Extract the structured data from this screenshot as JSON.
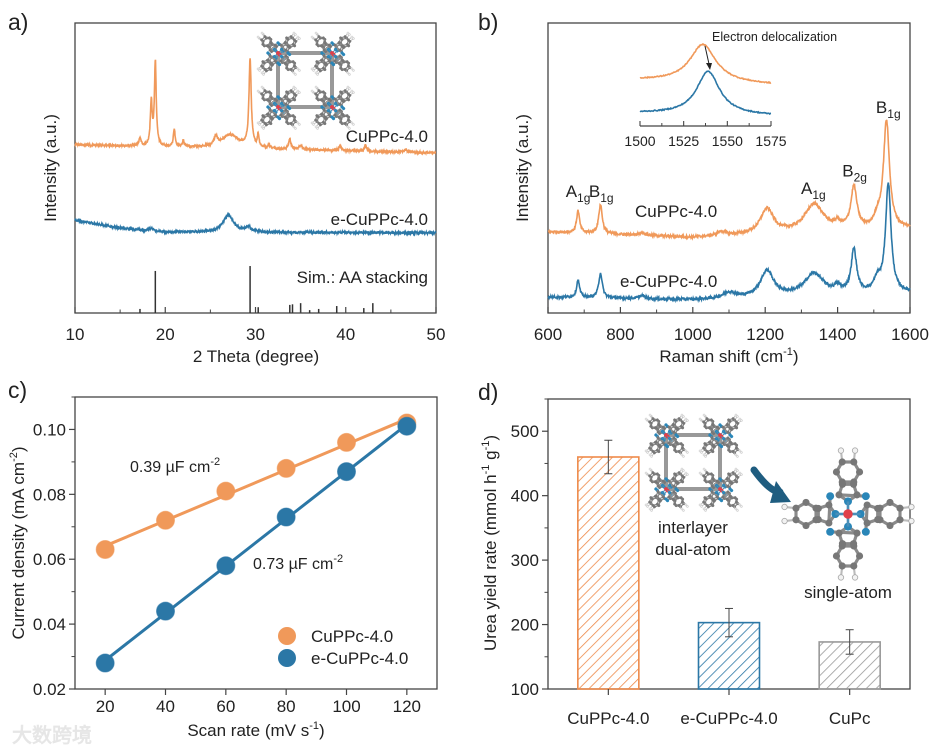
{
  "figure": {
    "panel_labels": [
      "a)",
      "b)",
      "c)",
      "d)"
    ],
    "watermark": "大数跨境"
  },
  "chart_data": [
    {
      "type": "line",
      "panel": "a)",
      "xlabel": "2 Theta (degree)",
      "ylabel": "Intensity (a.u.)",
      "xlim": [
        10,
        50
      ],
      "ylim": [
        0,
        100
      ],
      "xticks": [
        10,
        20,
        30,
        40,
        50
      ],
      "xticklabels": [
        "10",
        "20",
        "30",
        "40",
        "50"
      ],
      "minor_step": 5,
      "series": [
        {
          "name": "CuPPc-4.0",
          "color": "#f0995a",
          "baseline": [
            [
              10,
              58
            ],
            [
              50,
              55.2
            ]
          ],
          "peaks": [
            [
              17.2,
              2.5,
              0.15
            ],
            [
              18.45,
              15,
              0.12
            ],
            [
              18.9,
              29,
              0.12
            ],
            [
              21.0,
              6,
              0.12
            ],
            [
              22.0,
              2,
              0.12
            ],
            [
              25.6,
              3,
              0.2
            ],
            [
              27.2,
              4.5,
              1.2
            ],
            [
              29.4,
              30,
              0.15
            ],
            [
              30.3,
              4,
              0.12
            ],
            [
              31.5,
              1,
              0.15
            ],
            [
              33.8,
              3.5,
              0.15
            ],
            [
              35.0,
              1.5,
              0.2
            ],
            [
              39.4,
              1.5,
              0.2
            ],
            [
              42.2,
              2,
              0.15
            ],
            [
              46.6,
              0.8,
              0.3
            ]
          ]
        },
        {
          "name": "e-CuPPc-4.0",
          "color": "#2b77a6",
          "baseline": [
            [
              10,
              32
            ],
            [
              15,
              29.3
            ],
            [
              20,
              27.9
            ],
            [
              50,
              27.6
            ]
          ],
          "peaks": [
            [
              18.5,
              1,
              0.2
            ],
            [
              27.0,
              6,
              0.7
            ],
            [
              29.2,
              1.8,
              0.3
            ]
          ]
        }
      ],
      "reference": {
        "name": "Sim.: AA stacking",
        "color": "#333333",
        "positions": [
          17.2,
          18.9,
          29.4,
          30.3,
          33.8,
          34.1,
          35.0,
          36.0,
          37.0,
          39.0,
          42.0,
          43.0
        ],
        "heights": [
          1.4,
          14.5,
          16.2,
          2.0,
          2.8,
          3.0,
          3.4,
          1.0,
          1.4,
          2.4,
          1.7,
          3.4
        ]
      }
    },
    {
      "type": "line",
      "panel": "b)",
      "xlabel": {
        "text": "Raman shift (cm",
        "sup": "-1",
        "tail": ")"
      },
      "ylabel": "Intensity (a.u.)",
      "xlim": [
        600,
        1600
      ],
      "ylim": [
        0,
        100
      ],
      "xticks": [
        600,
        800,
        1000,
        1200,
        1400,
        1600
      ],
      "xticklabels": [
        "600",
        "800",
        "1000",
        "1200",
        "1400",
        "1600"
      ],
      "minor_step": 100,
      "series": [
        {
          "name": "CuPPc-4.0",
          "color": "#f0995a",
          "baseline": [
            [
              600,
              28
            ],
            [
              1000,
              26
            ],
            [
              1600,
              29
            ]
          ],
          "peaks": [
            [
              683,
              7.6,
              5
            ],
            [
              745,
              10,
              6
            ],
            [
              860,
              1,
              10
            ],
            [
              1080,
              1.5,
              15
            ],
            [
              1205,
              8.6,
              22
            ],
            [
              1335,
              9.6,
              32
            ],
            [
              1400,
              2,
              10
            ],
            [
              1445,
              14.5,
              10
            ],
            [
              1510,
              3,
              12
            ],
            [
              1535,
              37,
              10
            ]
          ]
        },
        {
          "name": "e-CuPPc-4.0",
          "color": "#2b77a6",
          "baseline": [
            [
              600,
              5.5
            ],
            [
              1000,
              4.5
            ],
            [
              1600,
              7
            ]
          ],
          "peaks": [
            [
              683,
              6,
              5
            ],
            [
              745,
              8.5,
              6
            ],
            [
              860,
              1,
              10
            ],
            [
              1100,
              2,
              20
            ],
            [
              1205,
              9,
              22
            ],
            [
              1335,
              7.5,
              32
            ],
            [
              1400,
              2,
              10
            ],
            [
              1445,
              15,
              9
            ],
            [
              1510,
              4,
              12
            ],
            [
              1540,
              37.5,
              9
            ]
          ]
        }
      ],
      "annotations": [
        {
          "main": "A",
          "sub": "1g",
          "x": 683,
          "y": 40
        },
        {
          "main": "B",
          "sub": "1g",
          "x": 747,
          "y": 40
        },
        {
          "main": "A",
          "sub": "1g",
          "x": 1333,
          "y": 41
        },
        {
          "main": "B",
          "sub": "2g",
          "x": 1447,
          "y": 47
        },
        {
          "main": "B",
          "sub": "1g",
          "x": 1540,
          "y": 69
        }
      ],
      "inset": {
        "xlim": [
          1500,
          1575
        ],
        "ylim": [
          0,
          100
        ],
        "xticks": [
          1500,
          1525,
          1550,
          1575
        ],
        "xticklabels": [
          "1500",
          "1525",
          "1550",
          "1575"
        ],
        "annotation": "Electron delocalization",
        "series": [
          {
            "name": "CuPPc-4.0",
            "color": "#f0995a",
            "baseline": [
              [
                1500,
                53.5
              ],
              [
                1575,
                48
              ]
            ],
            "peaks": [
              [
                1536,
                44,
                9
              ]
            ]
          },
          {
            "name": "e-CuPPc-4.0",
            "color": "#2b77a6",
            "baseline": [
              [
                1500,
                15
              ],
              [
                1575,
                12
              ]
            ],
            "peaks": [
              [
                1539,
                50,
                8
              ]
            ]
          }
        ]
      }
    },
    {
      "type": "line",
      "panel": "c)",
      "xlabel": {
        "text": "Scan rate (mV s",
        "sup": "-1",
        "tail": ")"
      },
      "ylabel": {
        "text": "Current density (mA cm",
        "sup": "-2",
        "tail": ")"
      },
      "xlim": [
        10,
        130
      ],
      "ylim": [
        0.02,
        0.11
      ],
      "xticks": [
        20,
        40,
        60,
        80,
        100,
        120
      ],
      "xticklabels": [
        "20",
        "40",
        "60",
        "80",
        "100",
        "120"
      ],
      "yticks": [
        0.02,
        0.04,
        0.06,
        0.08,
        0.1
      ],
      "yticklabels": [
        "0.02",
        "0.04",
        "0.06",
        "0.08",
        "0.10"
      ],
      "y_minor_step": 0.01,
      "x": [
        20,
        40,
        60,
        80,
        100,
        120
      ],
      "series": [
        {
          "name": "CuPPc-4.0",
          "color": "#f0995a",
          "values": [
            0.063,
            0.072,
            0.081,
            0.088,
            0.096,
            0.102
          ],
          "slope_label": {
            "text": "0.39 µF cm",
            "sup": "-2"
          }
        },
        {
          "name": "e-CuPPc-4.0",
          "color": "#2b77a6",
          "values": [
            0.028,
            0.044,
            0.058,
            0.073,
            0.087,
            0.101
          ],
          "slope_label": {
            "text": "0.73 µF cm",
            "sup": "-2"
          }
        }
      ],
      "legend": "bottom-right"
    },
    {
      "type": "bar",
      "panel": "d)",
      "ylabel": {
        "text": "Urea yield rate (mmol h",
        "sup": "-1",
        "mid": " g",
        "sup2": "-1",
        "tail": ")"
      },
      "categories": [
        "CuPPc-4.0",
        "e-CuPPc-4.0",
        "CuPc"
      ],
      "values": [
        460,
        203,
        173
      ],
      "errors": [
        26,
        22,
        19
      ],
      "colors": [
        "#ee8a4a",
        "#2b77a6",
        "#999999"
      ],
      "ylim": [
        100,
        550
      ],
      "yticks": [
        100,
        200,
        300,
        400,
        500
      ],
      "yticklabels": [
        "100",
        "200",
        "300",
        "400",
        "500"
      ],
      "y_minor_step": 50,
      "annotations": [
        "interlayer",
        "dual-atom",
        "single-atom"
      ]
    }
  ]
}
